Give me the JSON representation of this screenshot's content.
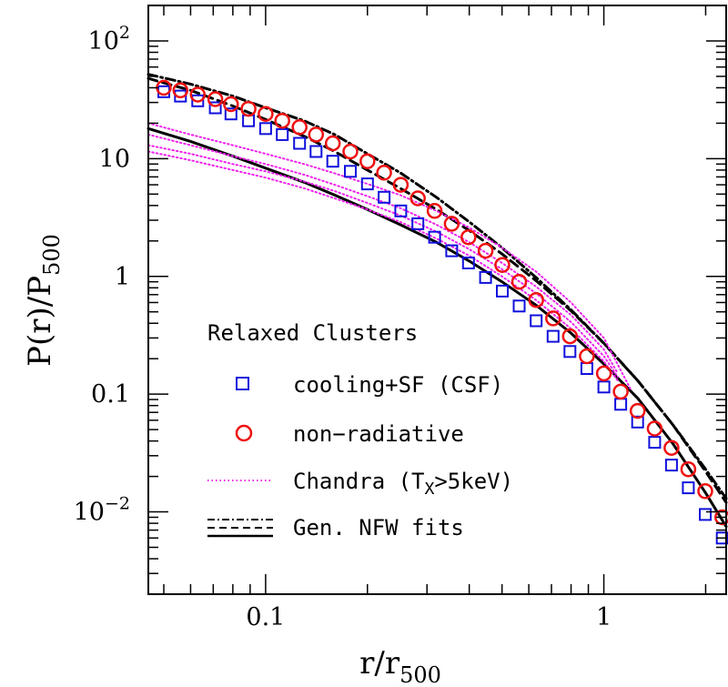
{
  "chart_data": {
    "type": "scatter",
    "xscale": "log",
    "yscale": "log",
    "xlim": [
      0.045,
      2.3
    ],
    "ylim": [
      0.002,
      200
    ],
    "xlabel": {
      "main": "r/r",
      "sub": "500"
    },
    "ylabel": {
      "main": "P(r)/P",
      "sub": "500"
    },
    "x_ticks": [
      {
        "value": 0.1,
        "label": "0.1"
      },
      {
        "value": 1,
        "label": "1"
      }
    ],
    "y_ticks": [
      {
        "value": 0.01,
        "base": "10",
        "exp": "−2"
      },
      {
        "value": 0.1,
        "label": "0.1"
      },
      {
        "value": 1,
        "label": "1"
      },
      {
        "value": 10,
        "label": "10"
      },
      {
        "value": 100,
        "base": "10",
        "exp": "2"
      }
    ],
    "legend": {
      "title": "Relaxed Clusters",
      "placement": "bottom-left",
      "entries": [
        {
          "marker": "square",
          "color": "#1010dd",
          "label": "cooling+SF (CSF)"
        },
        {
          "marker": "circle",
          "color": "#ee1111",
          "label": "non−radiative"
        },
        {
          "marker": "dotted-line",
          "color": "#ee22ee",
          "label_pre": "Chandra (T",
          "label_sub": "X",
          "label_post": ">5keV)"
        },
        {
          "marker": "fit-lines",
          "color": "#000000",
          "label": "Gen. NFW fits"
        }
      ]
    },
    "series": [
      {
        "name": "cooling+SF (CSF)",
        "kind": "markers",
        "marker": "square",
        "color": "#1010dd",
        "x": [
          0.05,
          0.056,
          0.063,
          0.071,
          0.079,
          0.089,
          0.1,
          0.112,
          0.126,
          0.141,
          0.158,
          0.178,
          0.2,
          0.224,
          0.251,
          0.282,
          0.316,
          0.355,
          0.398,
          0.447,
          0.501,
          0.562,
          0.631,
          0.708,
          0.794,
          0.891,
          1.0,
          1.122,
          1.259,
          1.413,
          1.585,
          1.778,
          1.995,
          2.239
        ],
        "y": [
          37,
          34,
          31,
          27,
          24,
          21,
          18,
          16,
          13.5,
          11.5,
          9.5,
          7.8,
          6.1,
          4.7,
          3.6,
          2.8,
          2.15,
          1.65,
          1.3,
          0.98,
          0.75,
          0.56,
          0.42,
          0.31,
          0.23,
          0.165,
          0.115,
          0.082,
          0.058,
          0.039,
          0.025,
          0.016,
          0.0095,
          0.006
        ]
      },
      {
        "name": "non−radiative",
        "kind": "markers",
        "marker": "circle",
        "color": "#ee1111",
        "x": [
          0.05,
          0.056,
          0.063,
          0.071,
          0.079,
          0.089,
          0.1,
          0.112,
          0.126,
          0.141,
          0.158,
          0.178,
          0.2,
          0.224,
          0.251,
          0.282,
          0.316,
          0.355,
          0.398,
          0.447,
          0.501,
          0.562,
          0.631,
          0.708,
          0.794,
          0.891,
          1.0,
          1.122,
          1.259,
          1.413,
          1.585,
          1.778,
          1.995,
          2.239
        ],
        "y": [
          40,
          38,
          35,
          32,
          29,
          26.5,
          24,
          21,
          18.5,
          16,
          13.5,
          11.5,
          9.5,
          7.6,
          6.0,
          4.6,
          3.6,
          2.8,
          2.15,
          1.65,
          1.25,
          0.9,
          0.63,
          0.44,
          0.31,
          0.21,
          0.15,
          0.105,
          0.072,
          0.051,
          0.035,
          0.023,
          0.015,
          0.009
        ]
      },
      {
        "name": "Gen. NFW fit (non−radiative)",
        "kind": "line",
        "style": "dash-dot",
        "color": "#000000",
        "x": [
          0.045,
          0.06,
          0.08,
          0.1,
          0.13,
          0.16,
          0.2,
          0.25,
          0.32,
          0.4,
          0.5,
          0.63,
          0.8,
          1.0,
          1.26,
          1.6,
          2.0,
          2.3
        ],
        "y": [
          52,
          43,
          34,
          27,
          21,
          16,
          11,
          7.6,
          4.7,
          2.9,
          1.75,
          0.98,
          0.52,
          0.27,
          0.13,
          0.055,
          0.023,
          0.013
        ]
      },
      {
        "name": "Gen. NFW fit (CSF)",
        "kind": "line",
        "style": "dashed",
        "color": "#000000",
        "x": [
          0.045,
          0.06,
          0.08,
          0.1,
          0.13,
          0.16,
          0.2,
          0.25,
          0.32,
          0.4,
          0.5,
          0.63,
          0.8,
          1.0,
          1.26,
          1.6,
          2.0,
          2.3
        ],
        "y": [
          48,
          38,
          28,
          21.5,
          15.5,
          11.5,
          8.0,
          5.6,
          3.7,
          2.45,
          1.55,
          0.92,
          0.51,
          0.27,
          0.13,
          0.055,
          0.022,
          0.012
        ]
      },
      {
        "name": "Gen. NFW fit (Chandra)",
        "kind": "line",
        "style": "solid",
        "color": "#000000",
        "x": [
          0.045,
          0.06,
          0.08,
          0.1,
          0.13,
          0.16,
          0.2,
          0.25,
          0.32,
          0.4,
          0.5,
          0.63,
          0.8,
          1.0,
          1.26,
          1.6,
          2.0,
          2.3
        ],
        "y": [
          18,
          14,
          10.5,
          8.3,
          6.3,
          4.9,
          3.7,
          2.75,
          1.95,
          1.35,
          0.9,
          0.57,
          0.33,
          0.18,
          0.092,
          0.038,
          0.0145,
          0.0075
        ]
      },
      {
        "name": "Chandra 1",
        "kind": "line",
        "style": "dotted",
        "color": "#ee22ee",
        "x": [
          0.045,
          0.06,
          0.08,
          0.1,
          0.13,
          0.16,
          0.2,
          0.25,
          0.32,
          0.4,
          0.5,
          0.63,
          0.8,
          1.0,
          1.2
        ],
        "y": [
          20,
          16,
          13,
          11,
          9.0,
          7.5,
          6.1,
          4.9,
          3.6,
          2.6,
          1.75,
          1.1,
          0.6,
          0.3,
          0.11
        ]
      },
      {
        "name": "Chandra 2",
        "kind": "line",
        "style": "dotted",
        "color": "#ee22ee",
        "x": [
          0.045,
          0.06,
          0.08,
          0.1,
          0.13,
          0.16,
          0.2,
          0.25,
          0.32,
          0.4,
          0.5,
          0.63,
          0.8,
          1.0,
          1.1
        ],
        "y": [
          16,
          13,
          10.5,
          9.0,
          7.3,
          6.0,
          4.8,
          3.8,
          2.75,
          1.95,
          1.3,
          0.82,
          0.47,
          0.24,
          0.15
        ]
      },
      {
        "name": "Chandra 3",
        "kind": "line",
        "style": "dotted",
        "color": "#ee22ee",
        "x": [
          0.045,
          0.06,
          0.08,
          0.1,
          0.13,
          0.16,
          0.2,
          0.25,
          0.32,
          0.4,
          0.5,
          0.63,
          0.8,
          1.0,
          1.1
        ],
        "y": [
          13,
          11,
          9.0,
          7.8,
          6.4,
          5.3,
          4.2,
          3.3,
          2.4,
          1.7,
          1.15,
          0.72,
          0.41,
          0.21,
          0.14
        ]
      },
      {
        "name": "Chandra 4",
        "kind": "line",
        "style": "dotted",
        "color": "#ee22ee",
        "x": [
          0.045,
          0.06,
          0.08,
          0.1,
          0.13,
          0.16,
          0.2,
          0.25,
          0.32,
          0.4,
          0.5,
          0.63,
          0.8,
          1.0,
          1.1
        ],
        "y": [
          11.5,
          9.7,
          8.0,
          6.9,
          5.6,
          4.6,
          3.7,
          2.9,
          2.1,
          1.5,
          1.0,
          0.63,
          0.36,
          0.19,
          0.13
        ]
      }
    ]
  }
}
